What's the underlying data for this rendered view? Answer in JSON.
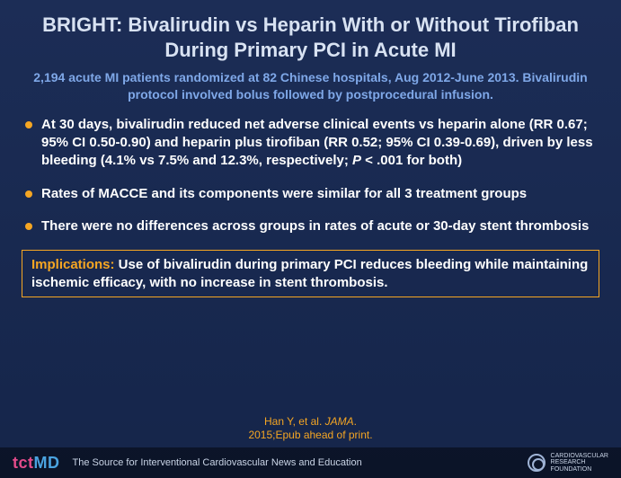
{
  "title": "BRIGHT: Bivalirudin vs Heparin With or Without Tirofiban During Primary PCI in Acute MI",
  "subtitle": "2,194 acute MI patients randomized at 82 Chinese hospitals, Aug 2012-June 2013. Bivalirudin protocol involved bolus followed by postprocedural infusion.",
  "bullets": {
    "b1_pre": "At 30 days, bivalirudin reduced net adverse clinical events vs heparin alone (RR 0.67; 95% CI 0.50-0.90) and heparin plus tirofiban (RR 0.52; 95% CI 0.39-0.69), driven by less bleeding (4.1% vs 7.5% and 12.3%, respectively; ",
    "b1_p": "P",
    "b1_post": " < .001 for both)",
    "b2": "Rates of MACCE and its components were similar for all 3 treatment groups",
    "b3": "There were no differences across groups in rates of acute or 30-day stent thrombosis"
  },
  "implications": {
    "label": "Implications:",
    "text": " Use of bivalirudin during primary PCI reduces bleeding while maintaining ischemic efficacy, with no increase in stent thrombosis."
  },
  "citation": {
    "authors": "Han Y, et al. ",
    "journal": "JAMA",
    "suffix": ".",
    "line2": "2015;Epub ahead of print."
  },
  "footer": {
    "logo_tct": "tct",
    "logo_md": "MD",
    "tagline": "The Source for Interventional Cardiovascular News and Education",
    "crf_line1": "Cardiovascular",
    "crf_line2": "Research",
    "crf_line3": "Foundation"
  },
  "colors": {
    "accent_orange": "#f5a623",
    "accent_blue": "#7fa8e8",
    "bg_top": "#1c2d56",
    "bg_bottom": "#15254a",
    "title_color": "#d8e2f2"
  },
  "typography": {
    "title_fontsize": 22,
    "subtitle_fontsize": 14,
    "bullet_fontsize": 15,
    "citation_fontsize": 12
  }
}
